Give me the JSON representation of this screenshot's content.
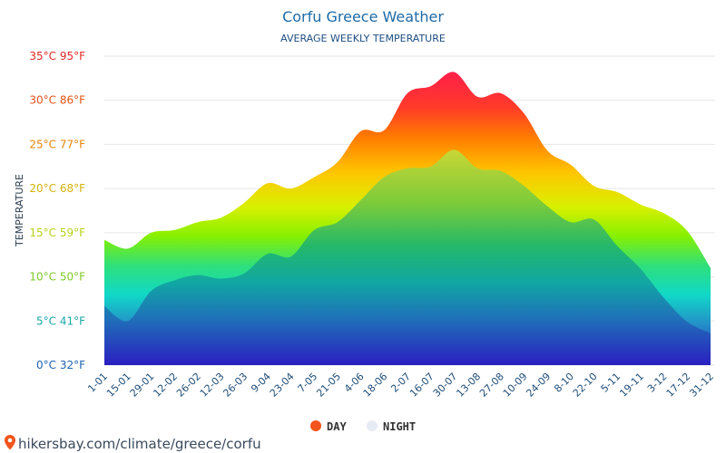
{
  "chart_data": {
    "type": "area",
    "title": "Corfu Greece Weather",
    "subtitle": "AVERAGE WEEKLY TEMPERATURE",
    "ylabel": "TEMPERATURE",
    "ylim": [
      0,
      35
    ],
    "y_ticks": [
      {
        "value": 0,
        "label": "0°C 32°F",
        "color": "#1f62b0"
      },
      {
        "value": 5,
        "label": "5°C 41°F",
        "color": "#18a6a8"
      },
      {
        "value": 10,
        "label": "10°C 50°F",
        "color": "#7ec82a"
      },
      {
        "value": 15,
        "label": "15°C 59°F",
        "color": "#b9d21a"
      },
      {
        "value": 20,
        "label": "20°C 68°F",
        "color": "#d4b20a"
      },
      {
        "value": 25,
        "label": "25°C 77°F",
        "color": "#e6850a"
      },
      {
        "value": 30,
        "label": "30°C 86°F",
        "color": "#e5531a"
      },
      {
        "value": 35,
        "label": "35°C 95°F",
        "color": "#e12b26"
      }
    ],
    "categories": [
      "1-01",
      "15-01",
      "29-01",
      "12-02",
      "26-02",
      "12-03",
      "26-03",
      "9-04",
      "23-04",
      "7-05",
      "21-05",
      "4-06",
      "18-06",
      "2-07",
      "16-07",
      "30-07",
      "13-08",
      "27-08",
      "10-09",
      "24-09",
      "8-10",
      "22-10",
      "5-11",
      "19-11",
      "3-12",
      "17-12",
      "31-12"
    ],
    "series": [
      {
        "name": "DAY",
        "legend_color": "#f2541b",
        "values": [
          14.2,
          13.2,
          15.0,
          15.3,
          16.2,
          16.7,
          18.4,
          20.6,
          20.0,
          21.3,
          23.0,
          26.5,
          26.6,
          30.8,
          31.6,
          33.2,
          30.4,
          30.8,
          28.5,
          24.3,
          22.7,
          20.3,
          19.6,
          18.2,
          17.2,
          15.2,
          11.0
        ]
      },
      {
        "name": "NIGHT",
        "legend_color": "#e6eaf2",
        "values": [
          6.7,
          5.0,
          8.4,
          9.6,
          10.2,
          9.8,
          10.4,
          12.6,
          12.3,
          15.3,
          16.2,
          18.7,
          21.3,
          22.3,
          22.5,
          24.4,
          22.3,
          22.0,
          20.3,
          18.0,
          16.2,
          16.5,
          13.5,
          10.9,
          7.6,
          4.9,
          3.6
        ]
      }
    ],
    "legend_position": "bottom"
  },
  "footer": {
    "text": "hikersbay.com/climate/greece/corfu"
  }
}
